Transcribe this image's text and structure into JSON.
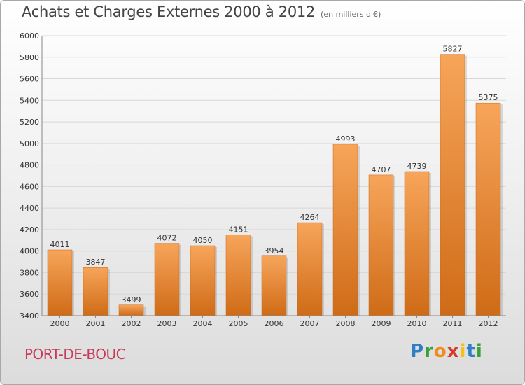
{
  "header": {
    "title": "Achats et Charges Externes 2000 à 2012",
    "subtitle": "(en milliers d'€)"
  },
  "footer": {
    "city": "PORT-DE-BOUC",
    "logo": "Proxiti"
  },
  "colors": {
    "bar_light": "#f7a55a",
    "bar_dark": "#cf6b17",
    "grid": "#d8d8d8",
    "city": "#c83a5a"
  },
  "chart_data": {
    "type": "bar",
    "title": "Achats et Charges Externes 2000 à 2012",
    "subtitle": "(en milliers d'€)",
    "categories": [
      "2000",
      "2001",
      "2002",
      "2003",
      "2004",
      "2005",
      "2006",
      "2007",
      "2008",
      "2009",
      "2010",
      "2011",
      "2012"
    ],
    "values": [
      4011,
      3847,
      3499,
      4072,
      4050,
      4151,
      3954,
      4264,
      4993,
      4707,
      4739,
      5827,
      5375
    ],
    "ylim": [
      3400,
      6000
    ],
    "yticks": [
      3400,
      3600,
      3800,
      4000,
      4200,
      4400,
      4600,
      4800,
      5000,
      5200,
      5400,
      5600,
      5800,
      6000
    ],
    "grid": true,
    "data_labels": true
  }
}
